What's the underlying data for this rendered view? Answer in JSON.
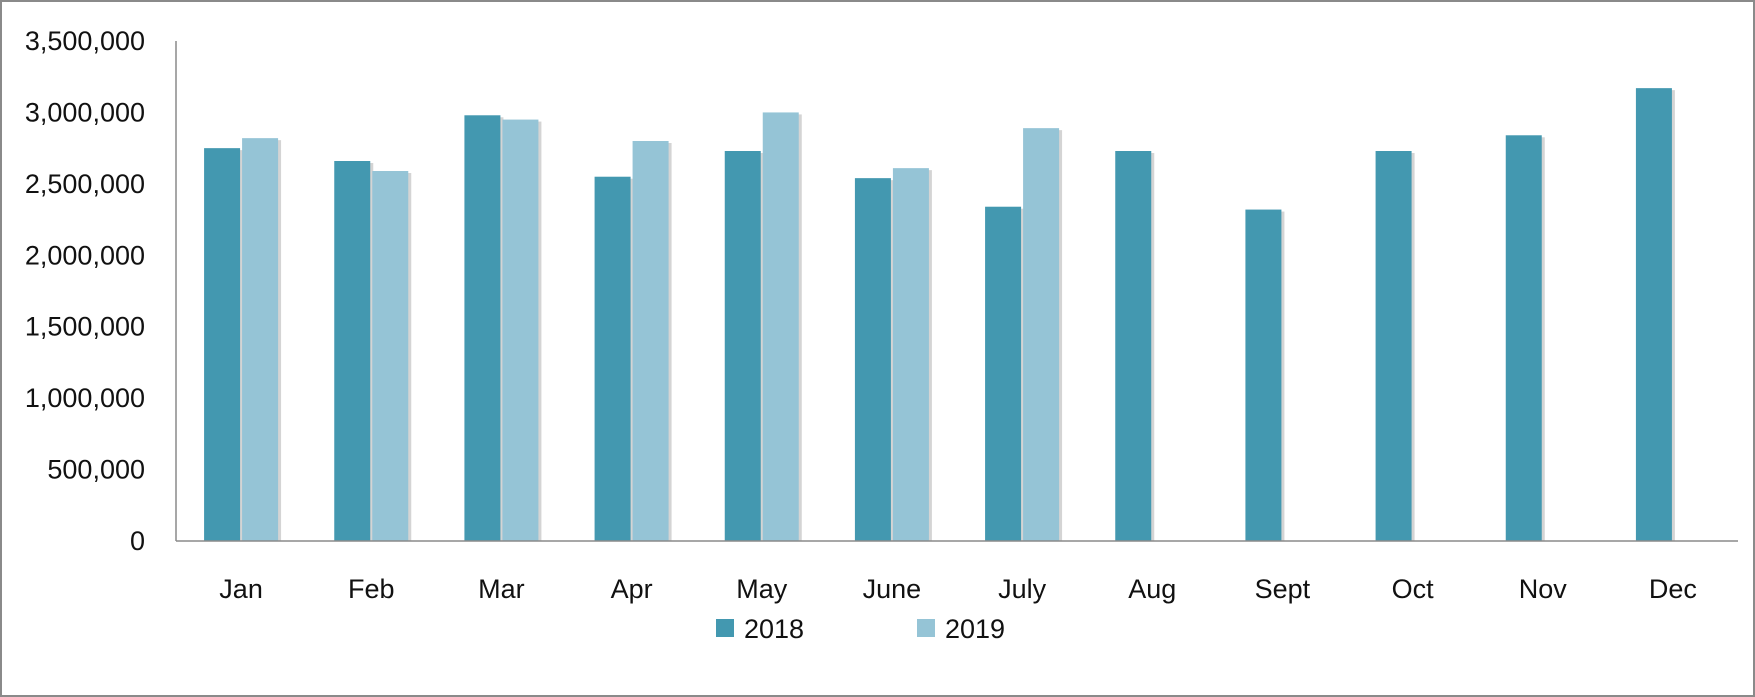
{
  "chart_data": {
    "type": "bar",
    "title": "",
    "xlabel": "",
    "ylabel": "",
    "categories": [
      "Jan",
      "Feb",
      "Mar",
      "Apr",
      "May",
      "June",
      "July",
      "Aug",
      "Sept",
      "Oct",
      "Nov",
      "Dec"
    ],
    "series": [
      {
        "name": "2018",
        "color": "#4398B0",
        "values": [
          2750000,
          2660000,
          2980000,
          2550000,
          2730000,
          2540000,
          2340000,
          2730000,
          2320000,
          2730000,
          2840000,
          3170000
        ]
      },
      {
        "name": "2019",
        "color": "#95C4D6",
        "values": [
          2820000,
          2590000,
          2950000,
          2800000,
          3000000,
          2610000,
          2890000,
          null,
          null,
          null,
          null,
          null
        ]
      }
    ],
    "ylim": [
      0,
      3500000
    ],
    "yticks": [
      "0",
      "500,000",
      "1,000,000",
      "1,500,000",
      "2,000,000",
      "2,500,000",
      "3,000,000",
      "3,500,000"
    ],
    "ytick_values": [
      0,
      500000,
      1000000,
      1500000,
      2000000,
      2500000,
      3000000,
      3500000
    ],
    "grid": false,
    "legend_position": "bottom"
  }
}
